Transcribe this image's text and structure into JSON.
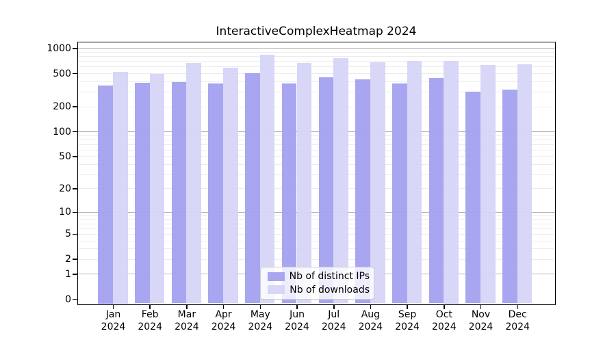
{
  "chart_data": {
    "type": "bar",
    "title": "InteractiveComplexHeatmap 2024",
    "categories": [
      "Jan",
      "Feb",
      "Mar",
      "Apr",
      "May",
      "Jun",
      "Jul",
      "Aug",
      "Sep",
      "Oct",
      "Nov",
      "Dec"
    ],
    "category_year": "2024",
    "series": [
      {
        "name": "Nb of distinct IPs",
        "color": "#a3a0ef",
        "values": [
          360,
          385,
          395,
          380,
          500,
          380,
          445,
          425,
          380,
          440,
          300,
          320
        ]
      },
      {
        "name": "Nb of downloads",
        "color": "#d6d4f7",
        "values": [
          525,
          490,
          660,
          580,
          840,
          660,
          760,
          675,
          700,
          710,
          630,
          645
        ]
      }
    ],
    "yscale": "log1p",
    "ylim": [
      0,
      1070
    ],
    "yticks": [
      0,
      1,
      2,
      5,
      10,
      20,
      50,
      100,
      200,
      500,
      1000
    ],
    "grid": {
      "major_ticks": [
        1,
        10,
        100,
        1000
      ],
      "minor_ticks": [
        2,
        3,
        4,
        5,
        6,
        7,
        8,
        9,
        20,
        30,
        40,
        50,
        60,
        70,
        80,
        90,
        200,
        300,
        400,
        500,
        600,
        700,
        800,
        900
      ],
      "major_color": "#b3b3b3",
      "minor_color": "#ececec"
    },
    "legend": {
      "position": "lower center"
    },
    "axis_color": "#000000",
    "background_color": "#ffffff"
  }
}
